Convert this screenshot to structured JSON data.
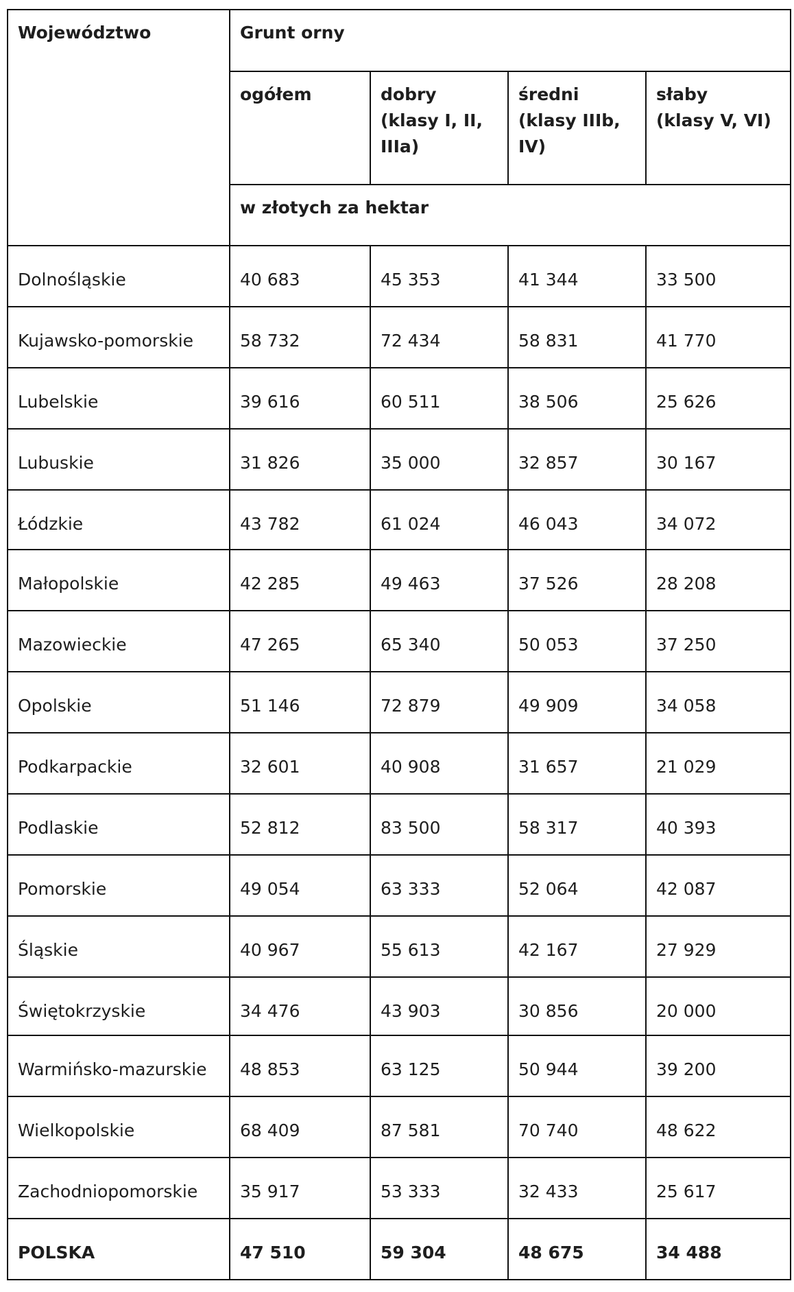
{
  "header": {
    "region_label": "Województwo",
    "group_label": "Grunt orny",
    "columns": [
      {
        "title": "ogółem",
        "sub": ""
      },
      {
        "title": "dobry",
        "sub": "(klasy I, II, IIIa)"
      },
      {
        "title": "średni",
        "sub": "(klasy IIIb, IV)"
      },
      {
        "title": "słaby",
        "sub": "(klasy V, VI)"
      }
    ],
    "unit": "w złotych za hektar"
  },
  "rows": [
    {
      "region": "Dolnośląskie",
      "values": [
        "40 683",
        "45 353",
        "41 344",
        "33 500"
      ]
    },
    {
      "region": "Kujawsko-pomorskie",
      "values": [
        "58 732",
        "72 434",
        "58 831",
        "41 770"
      ]
    },
    {
      "region": "Lubelskie",
      "values": [
        "39 616",
        "60 511",
        "38 506",
        "25 626"
      ]
    },
    {
      "region": "Lubuskie",
      "values": [
        "31 826",
        "35 000",
        "32 857",
        "30 167"
      ]
    },
    {
      "region": "Łódzkie",
      "values": [
        "43 782",
        "61 024",
        "46 043",
        "34 072"
      ]
    },
    {
      "region": "Małopolskie",
      "values": [
        "42 285",
        "49 463",
        "37 526",
        "28 208"
      ]
    },
    {
      "region": "Mazowieckie",
      "values": [
        "47 265",
        "65 340",
        "50 053",
        "37 250"
      ]
    },
    {
      "region": "Opolskie",
      "values": [
        "51 146",
        "72 879",
        "49 909",
        "34 058"
      ]
    },
    {
      "region": "Podkarpackie",
      "values": [
        "32 601",
        "40 908",
        "31 657",
        "21 029"
      ]
    },
    {
      "region": "Podlaskie",
      "values": [
        "52 812",
        "83 500",
        "58 317",
        "40 393"
      ]
    },
    {
      "region": "Pomorskie",
      "values": [
        "49 054",
        "63 333",
        "52 064",
        "42 087"
      ]
    },
    {
      "region": "Śląskie",
      "values": [
        "40 967",
        "55 613",
        "42 167",
        "27 929"
      ]
    },
    {
      "region": "Świętokrzyskie",
      "values": [
        "34 476",
        "43 903",
        "30 856",
        "20 000"
      ]
    },
    {
      "region": "Warmińsko-mazurskie",
      "values": [
        "48 853",
        "63 125",
        "50 944",
        "39 200"
      ]
    },
    {
      "region": "Wielkopolskie",
      "values": [
        "68 409",
        "87 581",
        "70 740",
        "48 622"
      ]
    },
    {
      "region": "Zachodniopomorskie",
      "values": [
        "35 917",
        "53 333",
        "32 433",
        "25 617"
      ]
    }
  ],
  "total": {
    "region": "POLSKA",
    "values": [
      "47 510",
      "59 304",
      "48 675",
      "34 488"
    ]
  }
}
